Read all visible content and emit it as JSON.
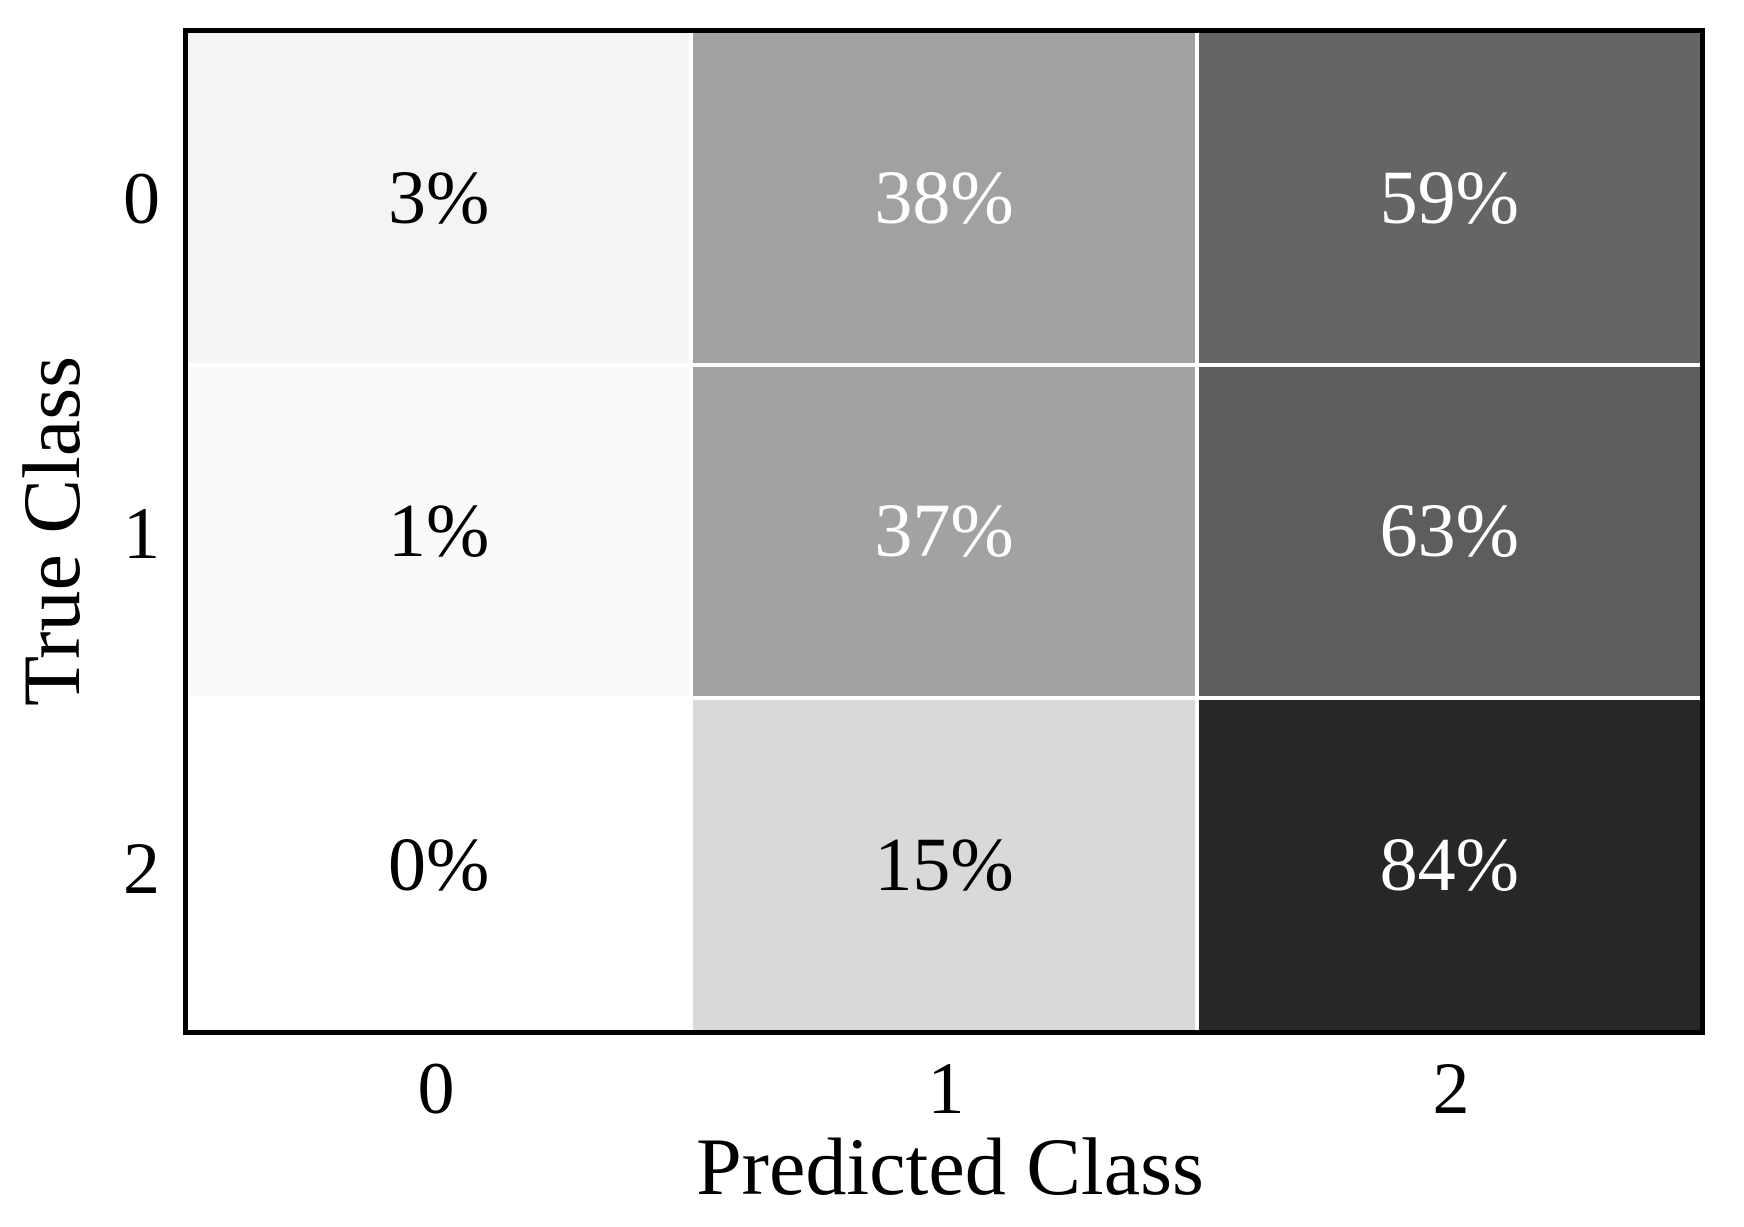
{
  "chart": {
    "xlabel": "Predicted Class",
    "ylabel": "True Class",
    "x_ticks": [
      "0",
      "1",
      "2"
    ],
    "y_ticks": [
      "0",
      "1",
      "2"
    ]
  },
  "matrix": {
    "cells": [
      {
        "row": "0",
        "col": "0",
        "label": "3%",
        "bg": "#f4f4f4",
        "fg": "#000000"
      },
      {
        "row": "0",
        "col": "1",
        "label": "38%",
        "bg": "#a1a1a1",
        "fg": "#ffffff"
      },
      {
        "row": "0",
        "col": "2",
        "label": "59%",
        "bg": "#656565",
        "fg": "#ffffff"
      },
      {
        "row": "1",
        "col": "0",
        "label": "1%",
        "bg": "#fafafa",
        "fg": "#000000"
      },
      {
        "row": "1",
        "col": "1",
        "label": "37%",
        "bg": "#a2a2a2",
        "fg": "#ffffff"
      },
      {
        "row": "1",
        "col": "2",
        "label": "63%",
        "bg": "#5d5d5d",
        "fg": "#ffffff"
      },
      {
        "row": "2",
        "col": "0",
        "label": "0%",
        "bg": "#ffffff",
        "fg": "#000000"
      },
      {
        "row": "2",
        "col": "1",
        "label": "15%",
        "bg": "#d9d9d9",
        "fg": "#000000"
      },
      {
        "row": "2",
        "col": "2",
        "label": "84%",
        "bg": "#272727",
        "fg": "#ffffff"
      }
    ]
  },
  "colors": {
    "axis_border": "#000000",
    "gridline": "#ffffff",
    "background": "#ffffff"
  },
  "chart_data": {
    "type": "heatmap",
    "title": "",
    "xlabel": "Predicted Class",
    "ylabel": "True Class",
    "x_categories": [
      "0",
      "1",
      "2"
    ],
    "y_categories": [
      "0",
      "1",
      "2"
    ],
    "values_percent": [
      [
        3,
        38,
        59
      ],
      [
        1,
        37,
        63
      ],
      [
        0,
        15,
        84
      ]
    ],
    "cell_labels": [
      [
        "3%",
        "38%",
        "59%"
      ],
      [
        "1%",
        "37%",
        "63%"
      ],
      [
        "0%",
        "15%",
        "84%"
      ]
    ],
    "colormap": "Greys",
    "grid": false,
    "legend": "none"
  }
}
